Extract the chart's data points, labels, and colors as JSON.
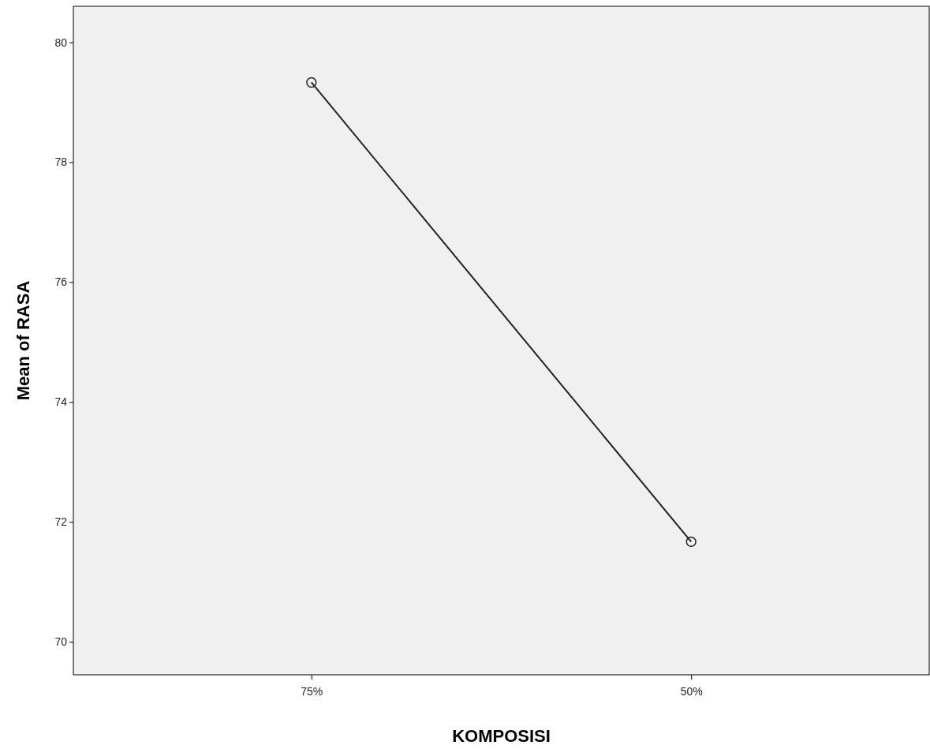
{
  "chart_data": {
    "type": "line",
    "xlabel": "KOMPOSISI",
    "ylabel": "Mean of RASA",
    "categories": [
      "75%",
      "50%"
    ],
    "series": [
      {
        "color": "#222222",
        "values": [
          79.33,
          71.67
        ]
      }
    ],
    "ylim": [
      69.45,
      80.6
    ],
    "yticks": [
      70,
      72,
      74,
      76,
      78,
      80
    ],
    "grid": false,
    "marker": "circle",
    "line_style": "solid"
  }
}
